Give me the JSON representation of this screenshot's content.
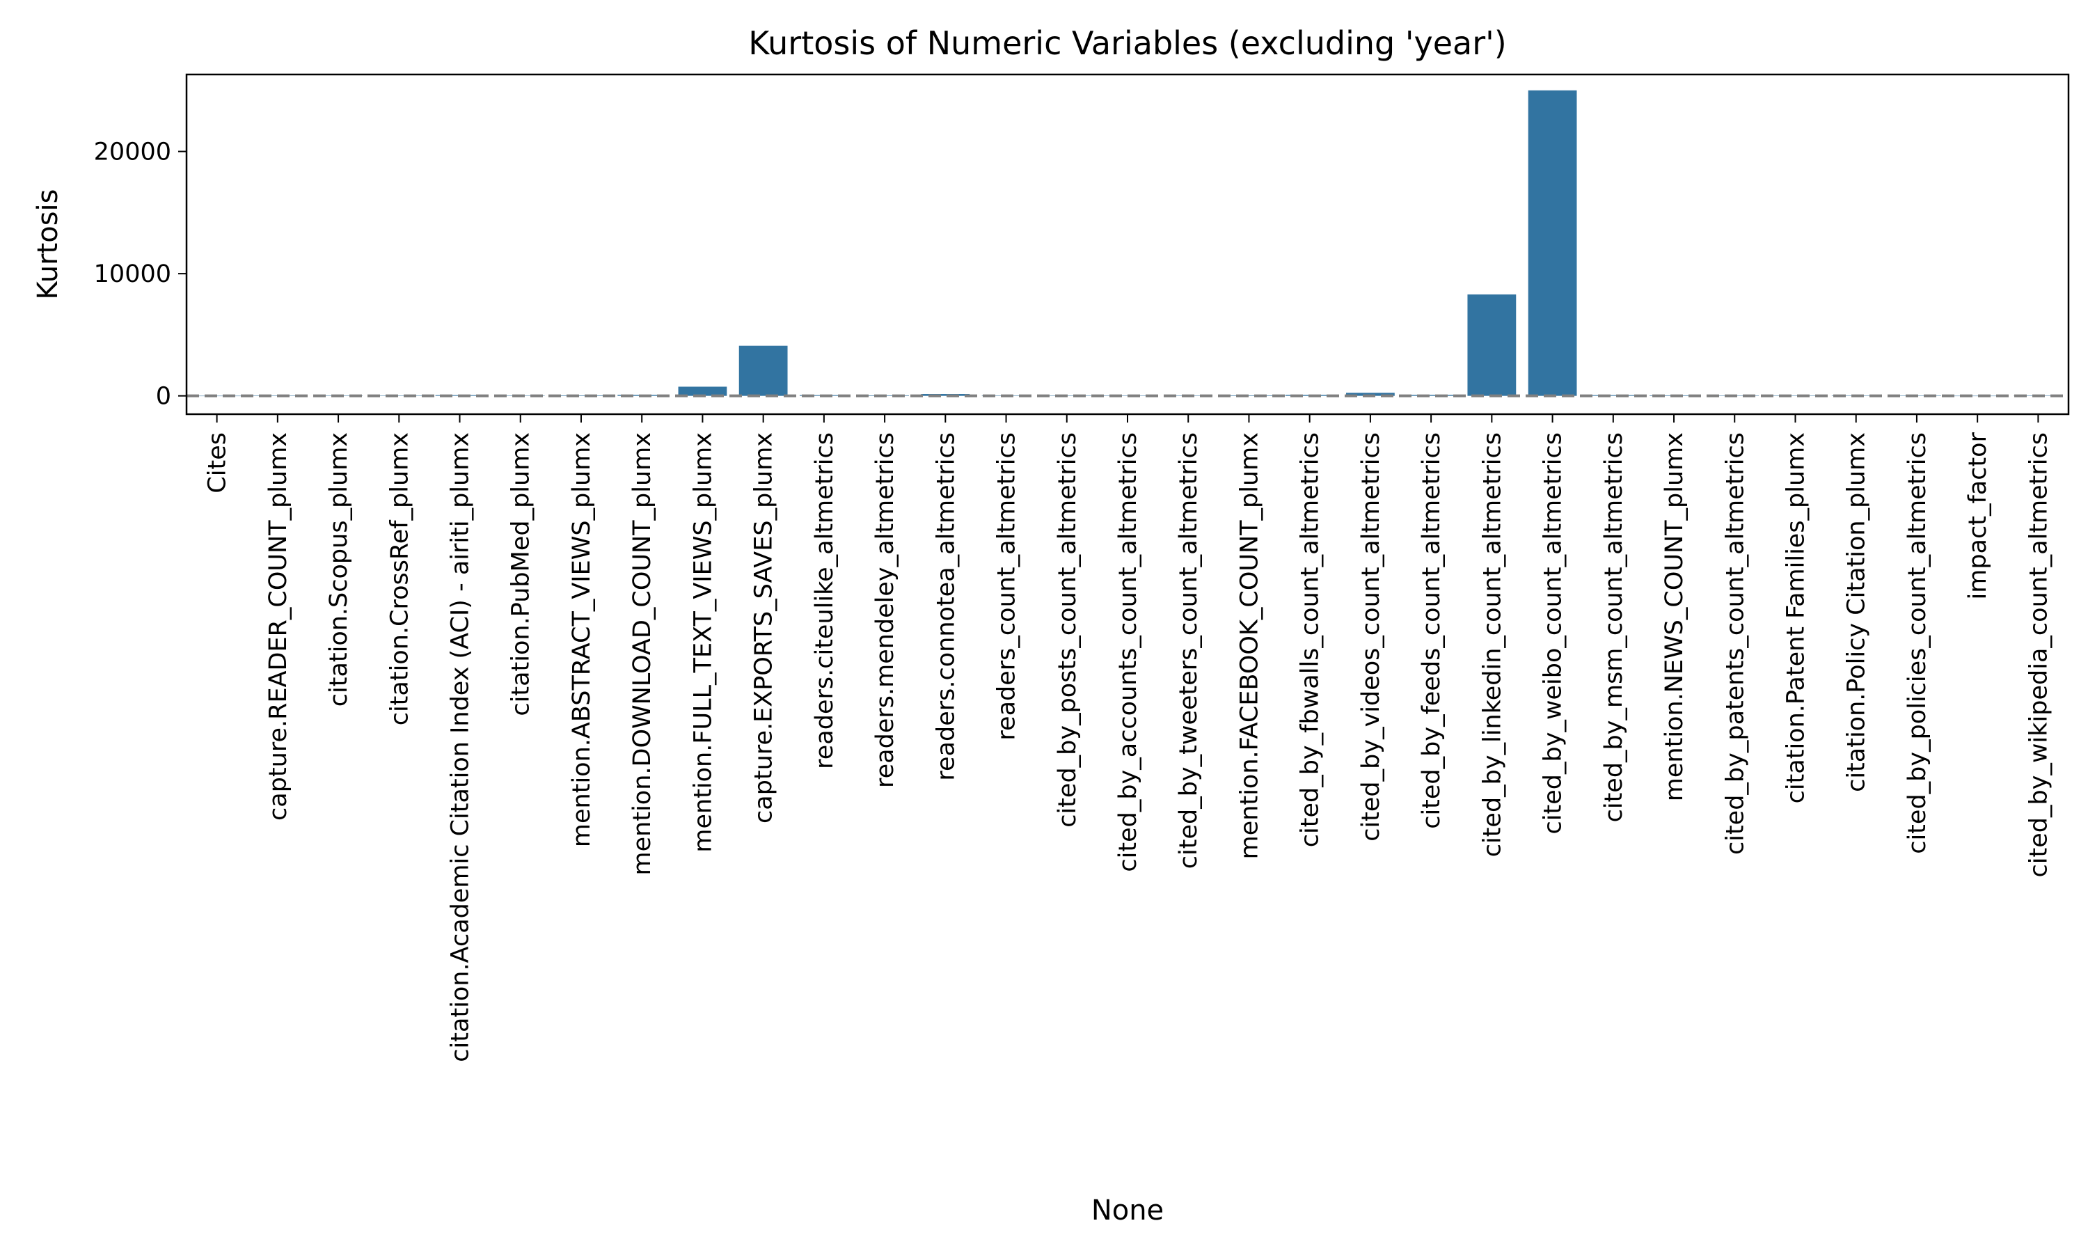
{
  "chart_data": {
    "type": "bar",
    "title": "Kurtosis of Numeric Variables (excluding 'year')",
    "xlabel": "None",
    "ylabel": "Kurtosis",
    "ylim": [
      -1500,
      26300
    ],
    "yticks": [
      0,
      10000,
      20000
    ],
    "ytick_labels": [
      "0",
      "10000",
      "20000"
    ],
    "reference_line": 0,
    "grid": false,
    "legend": "none",
    "bar_color": "#3274a1",
    "reference_line_color": "#808080",
    "categories": [
      "Cites",
      "capture.READER_COUNT_plumx",
      "citation.Scopus_plumx",
      "citation.CrossRef_plumx",
      "citation.Academic Citation Index (ACI) - airiti_plumx",
      "citation.PubMed_plumx",
      "mention.ABSTRACT_VIEWS_plumx",
      "mention.DOWNLOAD_COUNT_plumx",
      "mention.FULL_TEXT_VIEWS_plumx",
      "capture.EXPORTS_SAVES_plumx",
      "readers.citeulike_altmetrics",
      "readers.mendeley_altmetrics",
      "readers.connotea_altmetrics",
      "readers_count_altmetrics",
      "cited_by_posts_count_altmetrics",
      "cited_by_accounts_count_altmetrics",
      "cited_by_tweeters_count_altmetrics",
      "mention.FACEBOOK_COUNT_plumx",
      "cited_by_fbwalls_count_altmetrics",
      "cited_by_videos_count_altmetrics",
      "cited_by_feeds_count_altmetrics",
      "cited_by_linkedin_count_altmetrics",
      "cited_by_weibo_count_altmetrics",
      "cited_by_msm_count_altmetrics",
      "mention.NEWS_COUNT_plumx",
      "cited_by_patents_count_altmetrics",
      "citation.Patent Families_plumx",
      "citation.Policy Citation_plumx",
      "cited_by_policies_count_altmetrics",
      "impact_factor",
      "cited_by_wikipedia_count_altmetrics"
    ],
    "values": [
      5,
      30,
      10,
      15,
      60,
      20,
      40,
      80,
      750,
      4100,
      60,
      40,
      150,
      30,
      20,
      25,
      25,
      40,
      80,
      250,
      80,
      8300,
      25000,
      60,
      40,
      25,
      20,
      20,
      20,
      5,
      25
    ]
  }
}
